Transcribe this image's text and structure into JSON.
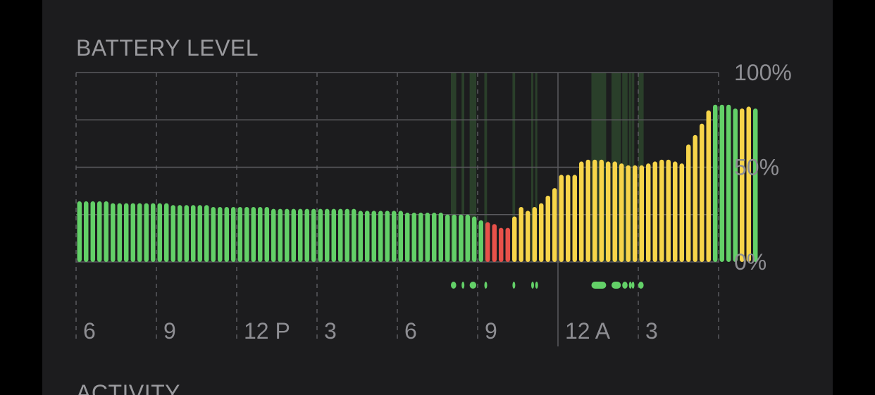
{
  "section": {
    "title": "BATTERY LEVEL",
    "next_title": "ACTIVITY"
  },
  "colors": {
    "background": "#1c1c1e",
    "normal": "#63d068",
    "low_power": "#f7d54a",
    "low_battery": "#e8514a",
    "charging_band": "#2a3f2a",
    "grid": "#5a5a5e",
    "label": "#8e8e93"
  },
  "chart_data": {
    "type": "bar",
    "title": "BATTERY LEVEL",
    "y_ticks": [
      "100%",
      "50%",
      "0%"
    ],
    "ylim": [
      0,
      100
    ],
    "x_ticks": [
      "6",
      "9",
      "12 P",
      "3",
      "6",
      "9",
      "12 A",
      "3"
    ],
    "xlim_hours": [
      6,
      30
    ],
    "gridlines": true,
    "bar_interval_hours": 0.25,
    "series": [
      {
        "name": "",
        "start_time": "6",
        "state_legend": {
          "n": "normal",
          "y": "low_power",
          "r": "low_battery",
          "c": "charging"
        },
        "values": [
          32,
          32,
          32,
          32,
          32,
          31,
          31,
          31,
          31,
          31,
          31,
          31,
          31,
          31,
          30,
          30,
          30,
          30,
          30,
          30,
          29,
          29,
          29,
          29,
          29,
          29,
          29,
          29,
          29,
          28,
          28,
          28,
          28,
          28,
          28,
          28,
          28,
          28,
          28,
          28,
          28,
          28,
          27,
          27,
          27,
          27,
          27,
          27,
          27,
          26,
          26,
          26,
          26,
          26,
          26,
          25,
          25,
          25,
          25,
          24,
          22,
          21,
          20,
          18,
          18,
          24,
          29,
          27,
          29,
          31,
          35,
          39,
          46,
          46,
          46,
          53,
          54,
          54,
          54,
          53,
          53,
          52,
          51,
          51,
          51,
          52,
          53,
          54,
          54,
          53,
          52,
          62,
          67,
          73,
          80,
          83,
          83,
          83,
          81,
          81,
          82,
          81
        ],
        "states": [
          "n",
          "n",
          "n",
          "n",
          "n",
          "n",
          "n",
          "n",
          "n",
          "n",
          "n",
          "n",
          "n",
          "n",
          "n",
          "n",
          "n",
          "n",
          "n",
          "n",
          "n",
          "n",
          "n",
          "n",
          "n",
          "n",
          "n",
          "n",
          "n",
          "n",
          "n",
          "n",
          "n",
          "n",
          "n",
          "n",
          "n",
          "n",
          "n",
          "n",
          "n",
          "n",
          "n",
          "n",
          "n",
          "n",
          "n",
          "n",
          "n",
          "n",
          "n",
          "n",
          "n",
          "n",
          "n",
          "n",
          "n",
          "n",
          "n",
          "n",
          "n",
          "r",
          "r",
          "r",
          "r",
          "y",
          "y",
          "y",
          "y",
          "y",
          "y",
          "y",
          "y",
          "y",
          "y",
          "y",
          "y",
          "y",
          "y",
          "y",
          "y",
          "y",
          "y",
          "y",
          "y",
          "y",
          "y",
          "y",
          "y",
          "y",
          "y",
          "y",
          "y",
          "y",
          "y",
          "n",
          "n",
          "n",
          "c",
          "y",
          "y",
          "n"
        ]
      }
    ],
    "charging_periods_hours": [
      [
        20.0,
        20.2
      ],
      [
        20.4,
        20.5
      ],
      [
        20.7,
        20.95
      ],
      [
        21.25,
        21.35
      ],
      [
        22.3,
        22.4
      ],
      [
        23.0,
        23.05
      ],
      [
        23.15,
        23.2
      ],
      [
        25.25,
        25.8
      ],
      [
        26.0,
        26.35
      ],
      [
        26.4,
        26.6
      ],
      [
        26.65,
        26.7
      ],
      [
        26.75,
        26.85
      ],
      [
        27.0,
        27.2
      ]
    ]
  }
}
